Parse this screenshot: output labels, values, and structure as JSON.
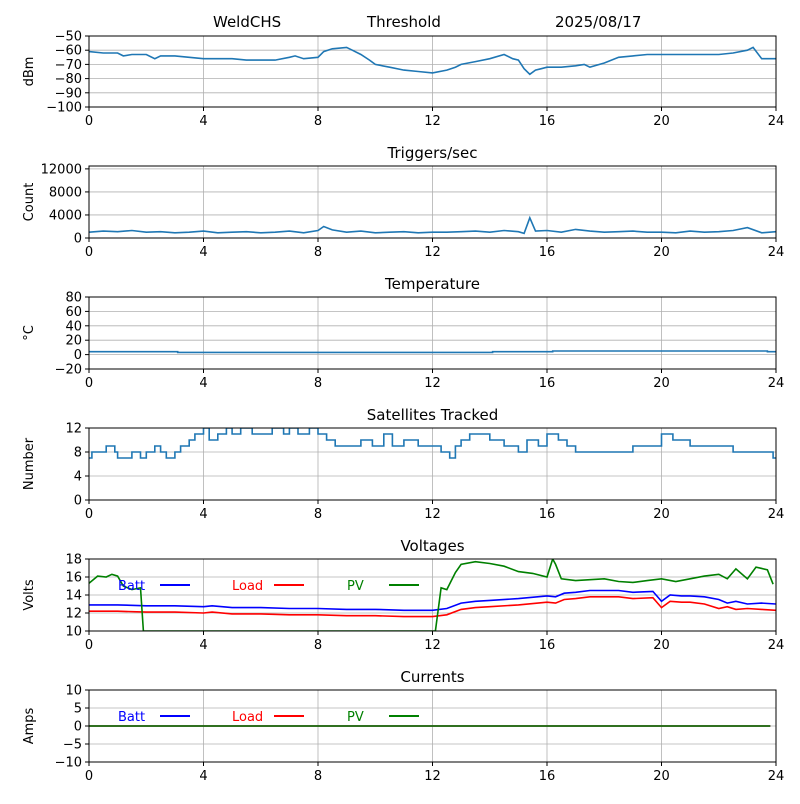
{
  "header": {
    "station": "WeldCHS",
    "mode": "Threshold",
    "date": "2025/08/17"
  },
  "colors": {
    "line": "#1f77b4",
    "batt": "#0000ff",
    "load": "#ff0000",
    "pv": "#008000",
    "grid": "#b0b0b0"
  },
  "chart_data": [
    {
      "type": "line",
      "title": "",
      "ylabel": "dBm",
      "xlim": [
        0,
        24
      ],
      "ylim": [
        -100,
        -50
      ],
      "xticks": [
        0,
        4,
        8,
        12,
        16,
        20,
        24
      ],
      "yticks": [
        -100,
        -90,
        -80,
        -70,
        -60,
        -50
      ],
      "grid": true,
      "series": [
        {
          "x": [
            0,
            0.5,
            1,
            1.2,
            1.5,
            2,
            2.3,
            2.5,
            3,
            3.5,
            4,
            4.5,
            5,
            5.5,
            6,
            6.5,
            7,
            7.2,
            7.5,
            8,
            8.2,
            8.5,
            9,
            9.2,
            9.5,
            9.8,
            10,
            10.5,
            11,
            11.5,
            12,
            12.5,
            12.8,
            13,
            13.5,
            14,
            14.5,
            14.8,
            15,
            15.2,
            15.4,
            15.6,
            15.8,
            16,
            16.5,
            17,
            17.3,
            17.5,
            18,
            18.5,
            19,
            19.5,
            20,
            20.5,
            21,
            21.5,
            22,
            22.5,
            23,
            23.2,
            23.5,
            24
          ],
          "values": [
            -61,
            -62,
            -62,
            -64,
            -63,
            -63,
            -66,
            -64,
            -64,
            -65,
            -66,
            -66,
            -66,
            -67,
            -67,
            -67,
            -65,
            -64,
            -66,
            -65,
            -61,
            -59,
            -58,
            -60,
            -63,
            -67,
            -70,
            -72,
            -74,
            -75,
            -76,
            -74,
            -72,
            -70,
            -68,
            -66,
            -63,
            -66,
            -67,
            -73,
            -77,
            -74,
            -73,
            -72,
            -72,
            -71,
            -70,
            -72,
            -69,
            -65,
            -64,
            -63,
            -63,
            -63,
            -63,
            -63,
            -63,
            -62,
            -60,
            -58,
            -66,
            -66
          ]
        }
      ]
    },
    {
      "type": "line",
      "title": "Triggers/sec",
      "ylabel": "Count",
      "xlim": [
        0,
        24
      ],
      "ylim": [
        0,
        12500
      ],
      "xticks": [
        0,
        4,
        8,
        12,
        16,
        20,
        24
      ],
      "yticks": [
        0,
        4000,
        8000,
        12000
      ],
      "grid": true,
      "series": [
        {
          "x": [
            0,
            0.5,
            1,
            1.5,
            2,
            2.5,
            3,
            3.5,
            4,
            4.5,
            5,
            5.5,
            6,
            6.5,
            7,
            7.5,
            8,
            8.2,
            8.5,
            9,
            9.5,
            10,
            10.5,
            11,
            11.5,
            12,
            12.5,
            13,
            13.5,
            14,
            14.5,
            15,
            15.2,
            15.4,
            15.6,
            16,
            16.5,
            17,
            17.5,
            18,
            18.5,
            19,
            19.5,
            20,
            20.5,
            21,
            21.5,
            22,
            22.5,
            23,
            23.5,
            24
          ],
          "values": [
            1000,
            1200,
            1100,
            1300,
            1000,
            1100,
            900,
            1000,
            1200,
            900,
            1000,
            1100,
            900,
            1000,
            1200,
            900,
            1300,
            2000,
            1400,
            1000,
            1200,
            900,
            1000,
            1100,
            900,
            1000,
            1000,
            1100,
            1200,
            1000,
            1300,
            1100,
            800,
            3500,
            1200,
            1300,
            1000,
            1500,
            1200,
            1000,
            1100,
            1200,
            1000,
            1000,
            900,
            1200,
            1000,
            1100,
            1300,
            1800,
            900,
            1100
          ]
        }
      ]
    },
    {
      "type": "line",
      "title": "Temperature",
      "ylabel": "°C",
      "xlim": [
        0,
        24
      ],
      "ylim": [
        -20,
        80
      ],
      "xticks": [
        0,
        4,
        8,
        12,
        16,
        20,
        24
      ],
      "yticks": [
        -20,
        0,
        20,
        40,
        60,
        80
      ],
      "grid": true,
      "series": [
        {
          "x": [
            0,
            3.1,
            3.1,
            14.1,
            14.1,
            16.2,
            16.2,
            23.7,
            23.7,
            24
          ],
          "values": [
            4,
            4,
            3,
            3,
            4,
            4,
            5,
            5,
            4,
            4
          ]
        }
      ]
    },
    {
      "type": "line",
      "step": true,
      "title": "Satellites Tracked",
      "ylabel": "Number",
      "xlim": [
        0,
        24
      ],
      "ylim": [
        0,
        12
      ],
      "xticks": [
        0,
        4,
        8,
        12,
        16,
        20,
        24
      ],
      "yticks": [
        0,
        4,
        8,
        12
      ],
      "grid": true,
      "series": [
        {
          "x": [
            0,
            0.1,
            0.4,
            0.6,
            0.9,
            1,
            1.5,
            1.8,
            2,
            2.3,
            2.5,
            2.7,
            3,
            3.2,
            3.5,
            3.7,
            4,
            4.2,
            4.5,
            4.8,
            5,
            5.3,
            5.7,
            6,
            6.4,
            6.8,
            7,
            7.3,
            7.7,
            8,
            8.3,
            8.6,
            9,
            9.5,
            9.9,
            10.3,
            10.6,
            11,
            11.5,
            12,
            12.3,
            12.6,
            12.8,
            13,
            13.3,
            13.6,
            14,
            14.5,
            15,
            15.3,
            15.7,
            16,
            16.4,
            16.7,
            17,
            17.5,
            18,
            18.5,
            19,
            19.5,
            20,
            20.4,
            21,
            21.5,
            22,
            22.5,
            23,
            23.5,
            23.9,
            24
          ],
          "values": [
            7,
            8,
            8,
            9,
            8,
            7,
            8,
            7,
            8,
            9,
            8,
            7,
            8,
            9,
            10,
            11,
            12,
            10,
            11,
            12,
            11,
            12,
            11,
            11,
            12,
            11,
            12,
            11,
            12,
            11,
            10,
            9,
            9,
            10,
            9,
            11,
            9,
            10,
            9,
            9,
            8,
            7,
            9,
            10,
            11,
            11,
            10,
            9,
            8,
            10,
            9,
            11,
            10,
            9,
            8,
            8,
            8,
            8,
            9,
            9,
            11,
            10,
            9,
            9,
            9,
            8,
            8,
            8,
            7,
            7
          ]
        }
      ]
    },
    {
      "type": "line",
      "title": "Voltages",
      "ylabel": "Volts",
      "xlim": [
        0,
        24
      ],
      "ylim": [
        10,
        18
      ],
      "xticks": [
        0,
        4,
        8,
        12,
        16,
        20,
        24
      ],
      "yticks": [
        10,
        12,
        14,
        16,
        18
      ],
      "grid": true,
      "legend": "top-left",
      "series": [
        {
          "name": "Batt",
          "color": "batt",
          "x": [
            0,
            1,
            2,
            3,
            4,
            4.3,
            5,
            6,
            7,
            8,
            9,
            10,
            11,
            12,
            12.5,
            13,
            13.5,
            14,
            15,
            16,
            16.3,
            16.6,
            17,
            17.5,
            18,
            18.5,
            19,
            19.7,
            20,
            20.3,
            20.7,
            21,
            21.5,
            22,
            22.3,
            22.6,
            23,
            23.5,
            24
          ],
          "values": [
            12.9,
            12.9,
            12.8,
            12.8,
            12.7,
            12.8,
            12.6,
            12.6,
            12.5,
            12.5,
            12.4,
            12.4,
            12.3,
            12.3,
            12.5,
            13.1,
            13.3,
            13.4,
            13.6,
            13.9,
            13.8,
            14.2,
            14.3,
            14.5,
            14.5,
            14.5,
            14.3,
            14.4,
            13.3,
            14.0,
            13.9,
            13.9,
            13.8,
            13.5,
            13.1,
            13.3,
            13.0,
            13.1,
            13.0
          ]
        },
        {
          "name": "Load",
          "color": "load",
          "x": [
            0,
            1,
            2,
            3,
            4,
            4.3,
            5,
            6,
            7,
            8,
            9,
            10,
            11,
            12,
            12.5,
            13,
            13.5,
            14,
            15,
            16,
            16.3,
            16.6,
            17,
            17.5,
            18,
            18.5,
            19,
            19.7,
            20,
            20.3,
            20.7,
            21,
            21.5,
            22,
            22.3,
            22.6,
            23,
            23.5,
            24
          ],
          "values": [
            12.2,
            12.2,
            12.1,
            12.1,
            12.0,
            12.1,
            11.9,
            11.9,
            11.8,
            11.8,
            11.7,
            11.7,
            11.6,
            11.6,
            11.8,
            12.4,
            12.6,
            12.7,
            12.9,
            13.2,
            13.1,
            13.5,
            13.6,
            13.8,
            13.8,
            13.8,
            13.6,
            13.7,
            12.6,
            13.3,
            13.2,
            13.2,
            13.0,
            12.5,
            12.7,
            12.4,
            12.5,
            12.4,
            12.3
          ]
        },
        {
          "name": "PV",
          "color": "pv",
          "x": [
            0,
            0.3,
            0.6,
            0.8,
            1,
            1.2,
            1.5,
            1.8,
            1.9,
            12.1,
            12.3,
            12.5,
            12.8,
            13,
            13.5,
            14,
            14.5,
            15,
            15.5,
            16,
            16.2,
            16.3,
            16.5,
            17,
            17.5,
            18,
            18.5,
            19,
            19.5,
            20,
            20.5,
            21,
            21.5,
            22,
            22.3,
            22.6,
            23,
            23.3,
            23.7,
            23.9
          ],
          "values": [
            15.3,
            16.1,
            16.0,
            16.3,
            16.1,
            15.0,
            14.6,
            14.8,
            10.0,
            10.0,
            14.8,
            14.6,
            16.5,
            17.4,
            17.7,
            17.5,
            17.2,
            16.6,
            16.4,
            16.0,
            18.0,
            17.4,
            15.8,
            15.6,
            15.7,
            15.8,
            15.5,
            15.4,
            15.6,
            15.8,
            15.5,
            15.8,
            16.1,
            16.3,
            15.8,
            16.9,
            15.8,
            17.1,
            16.8,
            15.2
          ]
        }
      ]
    },
    {
      "type": "line",
      "title": "Currents",
      "ylabel": "Amps",
      "xlim": [
        0,
        24
      ],
      "ylim": [
        -10,
        10
      ],
      "xticks": [
        0,
        4,
        8,
        12,
        16,
        20,
        24
      ],
      "yticks": [
        -10,
        -5,
        0,
        5,
        10
      ],
      "grid": true,
      "legend": "top-left",
      "series": [
        {
          "name": "Batt",
          "color": "batt",
          "x": [
            0,
            23.8
          ],
          "values": [
            0,
            0
          ]
        },
        {
          "name": "Load",
          "color": "load",
          "x": [
            0,
            23.8
          ],
          "values": [
            0,
            0
          ]
        },
        {
          "name": "PV",
          "color": "pv",
          "x": [
            0,
            23.8
          ],
          "values": [
            0,
            0
          ]
        }
      ]
    }
  ]
}
